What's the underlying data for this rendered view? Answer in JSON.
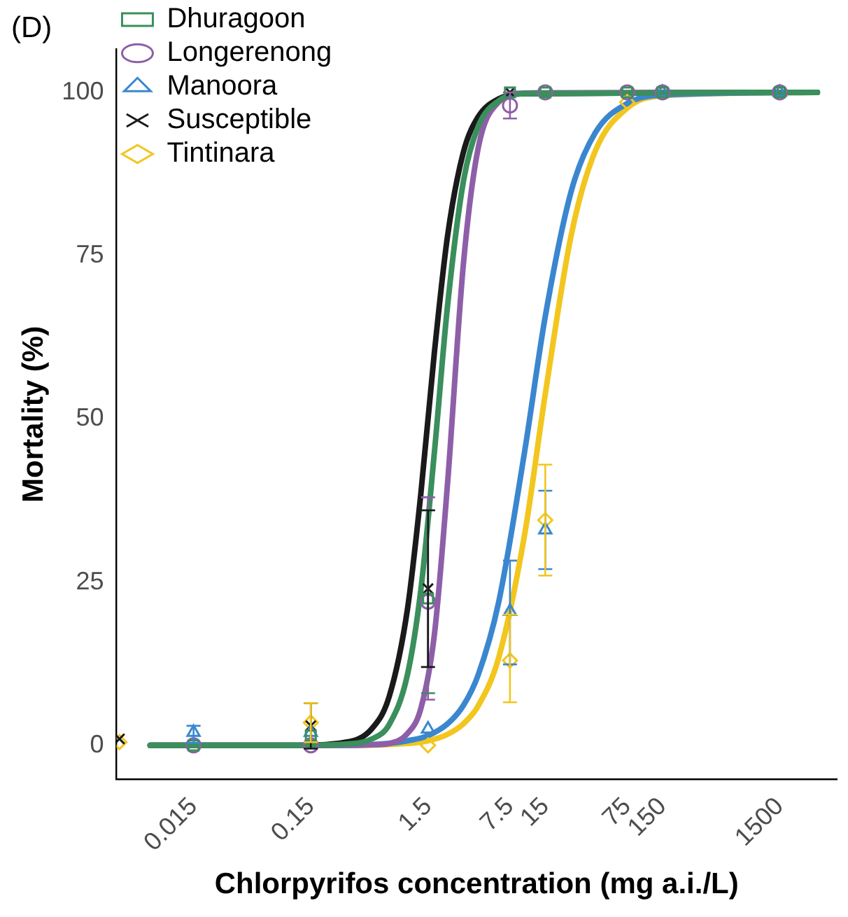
{
  "chart_data": {
    "type": "scatter",
    "title": "(D)",
    "xlabel": "Chlorpyrifos concentration (mg a.i./L)",
    "ylabel": "Mortality (%)",
    "log": "x",
    "legend": "top left",
    "xlim": [
      0.0033,
      4600
    ],
    "xticks": [
      0.015,
      0.15,
      1.5,
      7.5,
      15,
      75,
      150,
      1500
    ],
    "ylim": [
      -5.2,
      106.6
    ],
    "yticks": [
      0,
      25,
      50,
      75,
      100
    ],
    "series": [
      {
        "name": "Dhuragoon",
        "color": "#3a8f5c",
        "marker": "square",
        "x": [
          0.015,
          0.15,
          1.5,
          7.5,
          15,
          75,
          150,
          1500
        ],
        "values": [
          0,
          1.5,
          22.5,
          100,
          100,
          100,
          100,
          100
        ],
        "errors": [
          null,
          null,
          [
            8,
            36
          ],
          null,
          null,
          null,
          null,
          null
        ]
      },
      {
        "name": "Longerenong",
        "color": "#8e5fa8",
        "marker": "circle",
        "x": [
          0.015,
          0.15,
          1.5,
          7.5,
          15,
          75,
          150,
          1500
        ],
        "values": [
          0,
          0,
          22,
          98,
          100,
          100,
          100,
          100
        ],
        "errors": [
          null,
          null,
          [
            7,
            38
          ],
          2,
          null,
          null,
          null,
          null
        ]
      },
      {
        "name": "Manoora",
        "color": "#3a87d0",
        "marker": "triangle",
        "x": [
          0.015,
          0.15,
          1.5,
          7.5,
          15,
          150,
          1500
        ],
        "values": [
          2,
          2,
          2.5,
          20.5,
          33,
          100,
          100
        ],
        "errors": [
          [
            0.4,
            3
          ],
          null,
          null,
          [
            12.4,
            28.3
          ],
          [
            27,
            39
          ],
          null,
          null
        ]
      },
      {
        "name": "Susceptible",
        "color": "#1a1a1a",
        "marker": "cross",
        "x": [
          0.0035,
          0.15,
          1.5,
          7.5
        ],
        "values": [
          1,
          3,
          24,
          100
        ],
        "errors": [
          null,
          3.5,
          [
            12,
            36
          ],
          null
        ]
      },
      {
        "name": "Tintinara",
        "color": "#f2c61f",
        "marker": "diamond",
        "x": [
          0.0035,
          0.15,
          1.5,
          7.5,
          15,
          75
        ],
        "values": [
          0.5,
          3.5,
          0,
          13,
          34.5,
          98.5
        ],
        "errors": [
          null,
          [
            0.5,
            6.5
          ],
          null,
          [
            6.6,
            20
          ],
          [
            26,
            43
          ],
          null
        ]
      },
      {
        "type": "line",
        "color": "#3a8f5c",
        "x": [
          0.0064,
          0.1,
          0.3,
          0.5,
          0.7,
          1,
          1.3,
          1.7,
          2.2,
          3,
          4,
          6,
          10,
          3140
        ],
        "values": [
          0,
          0,
          0.2,
          1,
          3.2,
          10.8,
          23.7,
          44.9,
          67.3,
          86.3,
          94.7,
          98.7,
          99.8,
          100
        ]
      },
      {
        "type": "line",
        "color": "#8e5fa8",
        "x": [
          0.0064,
          0.1,
          0.5,
          0.7,
          1,
          1.3,
          1.7,
          2.2,
          3,
          4,
          6,
          10,
          3140
        ],
        "values": [
          0,
          0,
          0.1,
          0.3,
          1.8,
          5.6,
          17,
          40.1,
          73.6,
          91.3,
          98.5,
          99.9,
          100
        ]
      },
      {
        "type": "line",
        "color": "#3a87d0",
        "x": [
          0.0064,
          0.1,
          0.3,
          0.7,
          1,
          1.5,
          2.2,
          3,
          4,
          6,
          10,
          15,
          25,
          40,
          75,
          150,
          3140
        ],
        "values": [
          0,
          0,
          0,
          0.3,
          0.7,
          1.5,
          3.3,
          6.1,
          10.7,
          21.9,
          45,
          65.7,
          84.9,
          93.8,
          98.3,
          99.6,
          100
        ]
      },
      {
        "type": "line",
        "color": "#1a1a1a",
        "x": [
          0.0064,
          0.1,
          0.3,
          0.5,
          0.7,
          1,
          1.3,
          1.7,
          2.2,
          3,
          4,
          6,
          10,
          3140
        ],
        "values": [
          0,
          0,
          0.5,
          2.6,
          7.5,
          20.8,
          38.4,
          60.2,
          78,
          90.8,
          96.2,
          99,
          99.8,
          100
        ]
      },
      {
        "type": "line",
        "color": "#f2c61f",
        "x": [
          0.0064,
          0.3,
          1,
          1.5,
          2.2,
          3,
          4,
          6,
          10,
          15,
          25,
          40,
          75,
          150,
          3140
        ],
        "values": [
          0,
          0,
          0.3,
          0.7,
          1.7,
          3.3,
          6,
          13.4,
          32.3,
          53.8,
          78.2,
          91,
          97.6,
          99.5,
          100
        ]
      }
    ]
  }
}
